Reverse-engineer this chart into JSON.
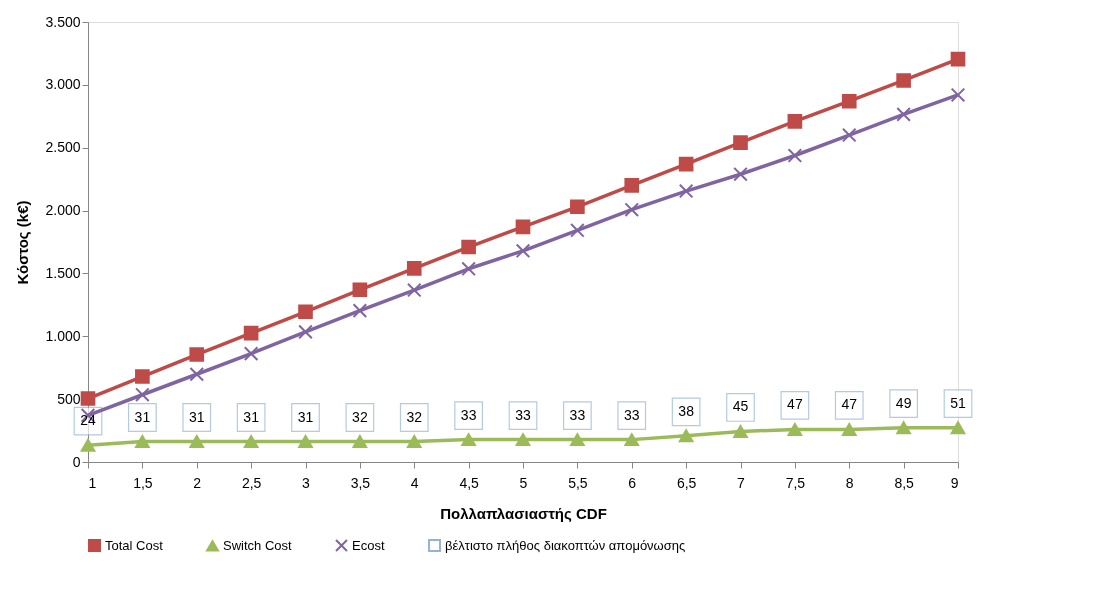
{
  "chart_data": {
    "type": "line",
    "xlabel": "Πολλαπλασιαστής CDF",
    "ylabel": "Κόστος (k€)",
    "x": [
      1,
      1.5,
      2,
      2.5,
      3,
      3.5,
      4,
      4.5,
      5,
      5.5,
      6,
      6.5,
      7,
      7.5,
      8,
      8.5,
      9
    ],
    "series": [
      {
        "name": "Total Cost",
        "marker": "square",
        "color": "#be4b48",
        "values": [
          505,
          680,
          855,
          1025,
          1195,
          1370,
          1540,
          1710,
          1870,
          2030,
          2200,
          2370,
          2540,
          2710,
          2870,
          3035,
          3205
        ]
      },
      {
        "name": "Switch Cost",
        "marker": "triangle",
        "color": "#9bbb59",
        "values": [
          134,
          163,
          163,
          163,
          163,
          163,
          163,
          178,
          178,
          178,
          178,
          208,
          243,
          259,
          259,
          273,
          273
        ]
      },
      {
        "name": "Ecost",
        "marker": "cross",
        "color": "#8064a2",
        "values": [
          371,
          535,
          698,
          862,
          1035,
          1204,
          1368,
          1537,
          1680,
          1843,
          2007,
          2155,
          2289,
          2438,
          2601,
          2765,
          2920
        ]
      },
      {
        "name": "βέλτιστο πλήθος διακοπτών απομόνωσης",
        "marker": "square",
        "color": "#95b3d7",
        "values": [
          null,
          null,
          null,
          null,
          null,
          null,
          null,
          null,
          null,
          null,
          null,
          null,
          null,
          null,
          null,
          null,
          null
        ]
      }
    ],
    "xlim": [
      1,
      9
    ],
    "xticks": [
      1,
      {
        "value": 1.5,
        "label": "1,5"
      },
      2,
      {
        "value": 2.5,
        "label": "2,5"
      },
      3,
      {
        "value": 3.5,
        "label": "3,5"
      },
      4,
      {
        "value": 4.5,
        "label": "4,5"
      },
      5,
      {
        "value": 5.5,
        "label": "5,5"
      },
      6,
      {
        "value": 6.5,
        "label": "6,5"
      },
      7,
      {
        "value": 7.5,
        "label": "7,5"
      },
      8,
      {
        "value": 8.5,
        "label": "8,5"
      },
      9
    ],
    "ylim": [
      0,
      3500
    ],
    "yticks": [
      0,
      500,
      {
        "value": 1000,
        "label": "1.000"
      },
      {
        "value": 1500,
        "label": "1.500"
      },
      {
        "value": 2000,
        "label": "2.000"
      },
      {
        "value": 2500,
        "label": "2.500"
      },
      {
        "value": 3000,
        "label": "3.000"
      },
      {
        "value": 3500,
        "label": "3.500"
      }
    ],
    "annotations": [
      {
        "text": "24",
        "x": 1,
        "y": 134
      },
      {
        "text": "31",
        "x": 1.5,
        "y": 163
      },
      {
        "text": "31",
        "x": 2,
        "y": 163
      },
      {
        "text": "31",
        "x": 2.5,
        "y": 163
      },
      {
        "text": "31",
        "x": 3,
        "y": 163
      },
      {
        "text": "32",
        "x": 3.5,
        "y": 163
      },
      {
        "text": "32",
        "x": 4,
        "y": 163
      },
      {
        "text": "33",
        "x": 4.5,
        "y": 178
      },
      {
        "text": "33",
        "x": 5,
        "y": 178
      },
      {
        "text": "33",
        "x": 5.5,
        "y": 178
      },
      {
        "text": "33",
        "x": 6,
        "y": 178
      },
      {
        "text": "38",
        "x": 6.5,
        "y": 208
      },
      {
        "text": "45",
        "x": 7,
        "y": 243
      },
      {
        "text": "47",
        "x": 7.5,
        "y": 259
      },
      {
        "text": "47",
        "x": 8,
        "y": 259
      },
      {
        "text": "49",
        "x": 8.5,
        "y": 273
      },
      {
        "text": "51",
        "x": 9,
        "y": 273
      }
    ],
    "grid": false,
    "legend": "bottom"
  }
}
